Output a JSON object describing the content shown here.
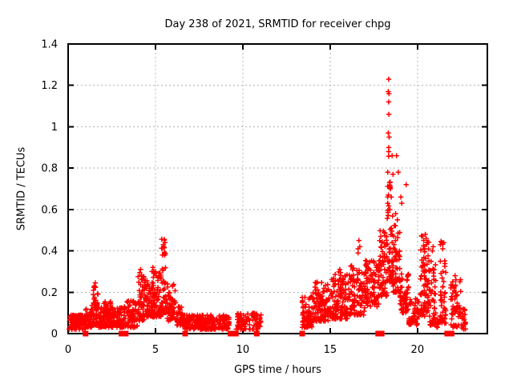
{
  "chart_data": {
    "type": "scatter",
    "title": "Day 238 of 2021, SRMTID for receiver chpg",
    "xlabel": "GPS time / hours",
    "ylabel": "SRMTID / TECUs",
    "xlim": [
      0,
      24
    ],
    "ylim": [
      0,
      1.4
    ],
    "xticks": [
      0,
      5,
      10,
      15,
      20
    ],
    "yticks": [
      0,
      0.2,
      0.4,
      0.6,
      0.8,
      1,
      1.2,
      1.4
    ],
    "ytick_labels": [
      "0",
      "0.2",
      "0.4",
      "0.6",
      "0.8",
      "1",
      "1.2",
      "1.4"
    ],
    "grid": true,
    "legend": "none",
    "marker": {
      "shape": "plus",
      "color": "#ff0000",
      "size": 7
    },
    "seed": 7,
    "series_name": "SRMTID",
    "bands": [
      {
        "x0": 0.05,
        "x1": 1.0,
        "y0": 0.02,
        "y1": 0.09,
        "n": 120,
        "bias": 1.2
      },
      {
        "x0": 1.0,
        "x1": 1.35,
        "y0": 0.03,
        "y1": 0.12,
        "n": 40,
        "bias": 1.2
      },
      {
        "x0": 1.35,
        "x1": 1.75,
        "y0": 0.04,
        "y1": 0.25,
        "n": 55,
        "bias": 2.2
      },
      {
        "x0": 1.75,
        "x1": 3.3,
        "y0": 0.03,
        "y1": 0.13,
        "n": 150,
        "bias": 1.5
      },
      {
        "x0": 2.05,
        "x1": 2.45,
        "y0": 0.08,
        "y1": 0.16,
        "n": 25,
        "bias": 1.0
      },
      {
        "x0": 3.35,
        "x1": 4.0,
        "y0": 0.03,
        "y1": 0.16,
        "n": 65,
        "bias": 1.5
      },
      {
        "x0": 4.0,
        "x1": 4.35,
        "y0": 0.06,
        "y1": 0.31,
        "n": 50,
        "bias": 1.8
      },
      {
        "x0": 4.35,
        "x1": 4.75,
        "y0": 0.08,
        "y1": 0.26,
        "n": 50,
        "bias": 1.5
      },
      {
        "x0": 4.75,
        "x1": 5.05,
        "y0": 0.08,
        "y1": 0.33,
        "n": 50,
        "bias": 1.8
      },
      {
        "x0": 5.05,
        "x1": 5.35,
        "y0": 0.08,
        "y1": 0.3,
        "n": 45,
        "bias": 1.8
      },
      {
        "x0": 5.35,
        "x1": 5.65,
        "y0": 0.1,
        "y1": 0.46,
        "n": 45,
        "bias": 1.8
      },
      {
        "x0": 5.65,
        "x1": 6.2,
        "y0": 0.06,
        "y1": 0.24,
        "n": 60,
        "bias": 1.6
      },
      {
        "x0": 6.2,
        "x1": 6.6,
        "y0": 0.04,
        "y1": 0.13,
        "n": 40,
        "bias": 1.3
      },
      {
        "x0": 6.65,
        "x1": 9.25,
        "y0": 0.02,
        "y1": 0.09,
        "n": 230,
        "bias": 1.2
      },
      {
        "x0": 9.6,
        "x1": 11.05,
        "y0": 0.02,
        "y1": 0.1,
        "n": 95,
        "bias": 1.3
      },
      {
        "x0": 13.4,
        "x1": 14.0,
        "y0": 0.03,
        "y1": 0.19,
        "n": 70,
        "bias": 1.6
      },
      {
        "x0": 14.0,
        "x1": 15.0,
        "y0": 0.06,
        "y1": 0.25,
        "n": 115,
        "bias": 1.5
      },
      {
        "x0": 15.0,
        "x1": 16.0,
        "y0": 0.07,
        "y1": 0.3,
        "n": 115,
        "bias": 1.6
      },
      {
        "x0": 16.0,
        "x1": 17.0,
        "y0": 0.09,
        "y1": 0.33,
        "n": 115,
        "bias": 1.6
      },
      {
        "x0": 17.0,
        "x1": 17.8,
        "y0": 0.13,
        "y1": 0.36,
        "n": 95,
        "bias": 1.3
      },
      {
        "x0": 17.8,
        "x1": 18.25,
        "y0": 0.18,
        "y1": 0.5,
        "n": 70,
        "bias": 1.5
      },
      {
        "x0": 18.25,
        "x1": 18.55,
        "y0": 0.25,
        "y1": 1.0,
        "n": 55,
        "bias": 2.5
      },
      {
        "x0": 18.55,
        "x1": 19.0,
        "y0": 0.2,
        "y1": 0.6,
        "n": 60,
        "bias": 2.0
      },
      {
        "x0": 19.0,
        "x1": 19.5,
        "y0": 0.1,
        "y1": 0.3,
        "n": 60,
        "bias": 1.3
      },
      {
        "x0": 19.5,
        "x1": 20.1,
        "y0": 0.04,
        "y1": 0.17,
        "n": 50,
        "bias": 1.3
      },
      {
        "x0": 20.15,
        "x1": 20.7,
        "y0": 0.08,
        "y1": 0.48,
        "n": 85,
        "bias": 1.2
      },
      {
        "x0": 20.7,
        "x1": 21.05,
        "y0": 0.04,
        "y1": 0.4,
        "n": 45,
        "bias": 1.8
      },
      {
        "x0": 21.05,
        "x1": 21.35,
        "y0": 0.03,
        "y1": 0.08,
        "n": 12,
        "bias": 1.0
      },
      {
        "x0": 21.3,
        "x1": 21.65,
        "y0": 0.05,
        "y1": 0.45,
        "n": 45,
        "bias": 1.6
      },
      {
        "x0": 21.9,
        "x1": 22.5,
        "y0": 0.03,
        "y1": 0.28,
        "n": 55,
        "bias": 1.5
      },
      {
        "x0": 22.5,
        "x1": 22.75,
        "y0": 0.02,
        "y1": 0.12,
        "n": 22,
        "bias": 1.3
      }
    ],
    "peaks": [
      [
        1.45,
        0.21
      ],
      [
        1.5,
        0.23
      ],
      [
        1.55,
        0.245
      ],
      [
        4.1,
        0.295
      ],
      [
        4.15,
        0.31
      ],
      [
        4.2,
        0.28
      ],
      [
        4.8,
        0.3
      ],
      [
        4.85,
        0.32
      ],
      [
        4.9,
        0.295
      ],
      [
        5.4,
        0.38
      ],
      [
        5.45,
        0.43
      ],
      [
        5.5,
        0.455
      ],
      [
        5.5,
        0.415
      ],
      [
        5.55,
        0.44
      ],
      [
        15.55,
        0.31
      ],
      [
        15.6,
        0.295
      ],
      [
        16.6,
        0.39
      ],
      [
        16.6,
        0.41
      ],
      [
        16.65,
        0.45
      ],
      [
        16.7,
        0.42
      ],
      [
        17.9,
        0.47
      ],
      [
        17.95,
        0.44
      ],
      [
        18.3,
        0.63
      ],
      [
        18.3,
        0.78
      ],
      [
        18.33,
        0.97
      ],
      [
        18.33,
        1.17
      ],
      [
        18.35,
        1.23
      ],
      [
        18.35,
        1.12
      ],
      [
        18.35,
        0.88
      ],
      [
        18.36,
        1.06
      ],
      [
        18.37,
        1.16
      ],
      [
        18.38,
        0.95
      ],
      [
        18.4,
        0.73
      ],
      [
        18.42,
        0.6
      ],
      [
        18.45,
        0.7
      ],
      [
        18.5,
        0.66
      ],
      [
        18.55,
        0.86
      ],
      [
        18.6,
        0.77
      ],
      [
        18.75,
        0.58
      ],
      [
        18.8,
        0.86
      ],
      [
        18.85,
        0.55
      ],
      [
        18.9,
        0.78
      ],
      [
        19.05,
        0.66
      ],
      [
        19.1,
        0.63
      ],
      [
        19.35,
        0.72
      ],
      [
        20.45,
        0.48
      ],
      [
        20.5,
        0.46
      ],
      [
        20.55,
        0.44
      ],
      [
        20.85,
        0.4
      ],
      [
        20.9,
        0.42
      ],
      [
        21.45,
        0.41
      ],
      [
        21.5,
        0.44
      ],
      [
        22.15,
        0.28
      ],
      [
        22.2,
        0.26
      ]
    ],
    "zero_markers": {
      "marker": "square",
      "x": [
        1.0,
        3.05,
        3.3,
        6.7,
        9.3,
        9.6,
        10.8,
        13.4,
        17.75,
        17.95,
        21.7,
        21.95
      ]
    }
  }
}
